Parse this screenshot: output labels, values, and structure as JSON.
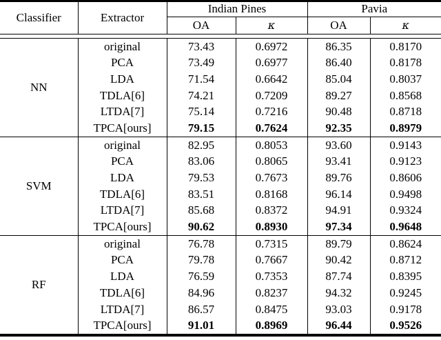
{
  "page": {
    "background": "#ffffff",
    "text_color": "#000000",
    "rule_color": "#000000"
  },
  "table": {
    "header": {
      "classifier": "Classifier",
      "extractor": "Extractor",
      "groups": [
        {
          "label": "Indian Pines",
          "cols": [
            {
              "label": "OA",
              "italic": false
            },
            {
              "label": "κ",
              "italic": true
            }
          ]
        },
        {
          "label": "Pavia",
          "cols": [
            {
              "label": "OA",
              "italic": false
            },
            {
              "label": "κ",
              "italic": true
            }
          ]
        }
      ]
    },
    "sections": [
      {
        "classifier": "NN",
        "rows": [
          {
            "extractor": "original",
            "values": [
              "73.43",
              "0.6972",
              "86.35",
              "0.8170"
            ],
            "bold": false
          },
          {
            "extractor": "PCA",
            "values": [
              "73.49",
              "0.6977",
              "86.40",
              "0.8178"
            ],
            "bold": false
          },
          {
            "extractor": "LDA",
            "values": [
              "71.54",
              "0.6642",
              "85.04",
              "0.8037"
            ],
            "bold": false
          },
          {
            "extractor": "TDLA[6]",
            "values": [
              "74.21",
              "0.7209",
              "89.27",
              "0.8568"
            ],
            "bold": false
          },
          {
            "extractor": "LTDA[7]",
            "values": [
              "75.14",
              "0.7216",
              "90.48",
              "0.8718"
            ],
            "bold": false
          },
          {
            "extractor": "TPCA[ours]",
            "values": [
              "79.15",
              "0.7624",
              "92.35",
              "0.8979"
            ],
            "bold": true
          }
        ]
      },
      {
        "classifier": "SVM",
        "rows": [
          {
            "extractor": "original",
            "values": [
              "82.95",
              "0.8053",
              "93.60",
              "0.9143"
            ],
            "bold": false
          },
          {
            "extractor": "PCA",
            "values": [
              "83.06",
              "0.8065",
              "93.41",
              "0.9123"
            ],
            "bold": false
          },
          {
            "extractor": "LDA",
            "values": [
              "79.53",
              "0.7673",
              "89.76",
              "0.8606"
            ],
            "bold": false
          },
          {
            "extractor": "TDLA[6]",
            "values": [
              "83.51",
              "0.8168",
              "96.14",
              "0.9498"
            ],
            "bold": false
          },
          {
            "extractor": "LTDA[7]",
            "values": [
              "85.68",
              "0.8372",
              "94.91",
              "0.9324"
            ],
            "bold": false
          },
          {
            "extractor": "TPCA[ours]",
            "values": [
              "90.62",
              "0.8930",
              "97.34",
              "0.9648"
            ],
            "bold": true
          }
        ]
      },
      {
        "classifier": "RF",
        "rows": [
          {
            "extractor": "original",
            "values": [
              "76.78",
              "0.7315",
              "89.79",
              "0.8624"
            ],
            "bold": false
          },
          {
            "extractor": "PCA",
            "values": [
              "79.78",
              "0.7667",
              "90.42",
              "0.8712"
            ],
            "bold": false
          },
          {
            "extractor": "LDA",
            "values": [
              "76.59",
              "0.7353",
              "87.74",
              "0.8395"
            ],
            "bold": false
          },
          {
            "extractor": "TDLA[6]",
            "values": [
              "84.96",
              "0.8237",
              "94.32",
              "0.9245"
            ],
            "bold": false
          },
          {
            "extractor": "LTDA[7]",
            "values": [
              "86.57",
              "0.8475",
              "93.03",
              "0.9178"
            ],
            "bold": false
          },
          {
            "extractor": "TPCA[ours]",
            "values": [
              "91.01",
              "0.8969",
              "96.44",
              "0.9526"
            ],
            "bold": true
          }
        ]
      }
    ]
  }
}
